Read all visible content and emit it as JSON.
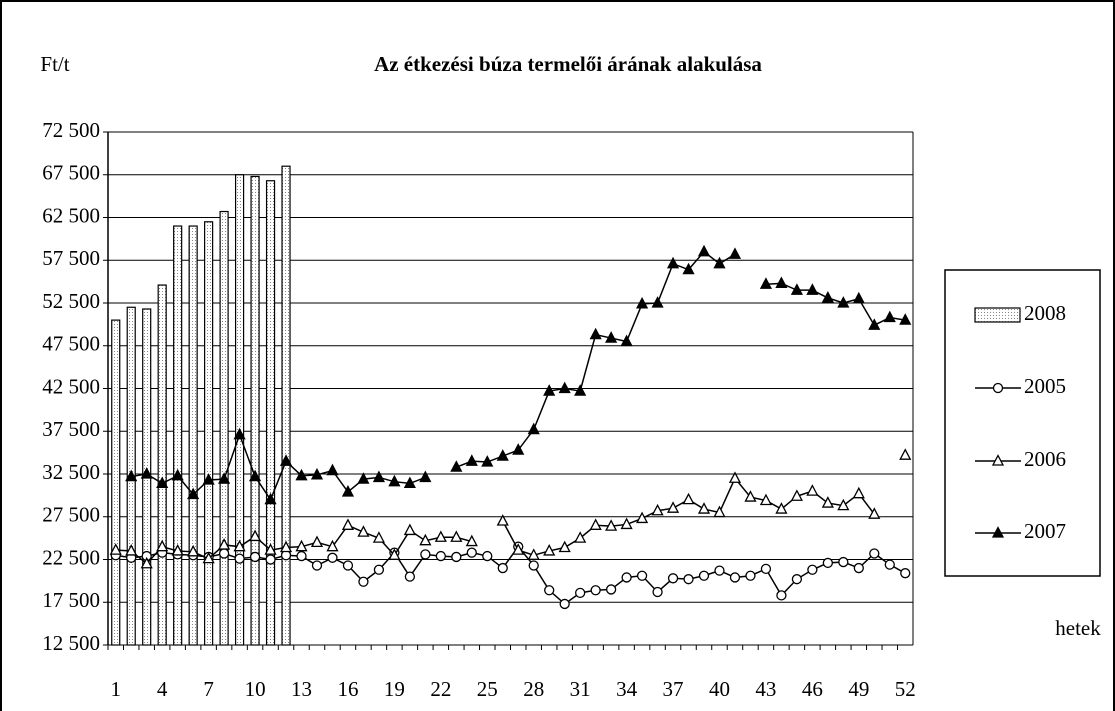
{
  "chart_data": {
    "type": "combo",
    "title": "Az étkezési búza termelői árának alakulása",
    "y_label": "Ft/t",
    "x_label": "hetek",
    "categories": [
      "1",
      null,
      null,
      "4",
      null,
      null,
      "7",
      null,
      null,
      "10",
      null,
      null,
      "13",
      null,
      null,
      "16",
      null,
      null,
      "19",
      null,
      null,
      "22",
      null,
      null,
      "25",
      null,
      null,
      "28",
      null,
      null,
      "31",
      null,
      null,
      "34",
      null,
      null,
      "37",
      null,
      null,
      "40",
      null,
      null,
      "43",
      null,
      null,
      "46",
      null,
      null,
      "49",
      null,
      null,
      "52"
    ],
    "ylim": [
      12500,
      72500
    ],
    "yticks": [
      {
        "value": 12500,
        "label": "12 500"
      },
      {
        "value": 17500,
        "label": "17 500"
      },
      {
        "value": 22500,
        "label": "22 500"
      },
      {
        "value": 27500,
        "label": "27 500"
      },
      {
        "value": 32500,
        "label": "32 500"
      },
      {
        "value": 37500,
        "label": "37 500"
      },
      {
        "value": 42500,
        "label": "42 500"
      },
      {
        "value": 47500,
        "label": "47 500"
      },
      {
        "value": 52500,
        "label": "52 500"
      },
      {
        "value": 57500,
        "label": "57 500"
      },
      {
        "value": 62500,
        "label": "62 500"
      },
      {
        "value": 67500,
        "label": "67 500"
      },
      {
        "value": 72500,
        "label": "72 500"
      }
    ],
    "grid": true,
    "legend": "right",
    "series": [
      {
        "name": "2008",
        "type": "bar",
        "color": "#e6e6e6",
        "values": [
          50500,
          52000,
          51800,
          54600,
          61500,
          61500,
          62000,
          63200,
          67500,
          67300,
          66800,
          68500,
          null,
          null,
          null,
          null,
          null,
          null,
          null,
          null,
          null,
          null,
          null,
          null,
          null,
          null,
          null,
          null,
          null,
          null,
          null,
          null,
          null,
          null,
          null,
          null,
          null,
          null,
          null,
          null,
          null,
          null,
          null,
          null,
          null,
          null,
          null,
          null,
          null,
          null,
          null,
          null
        ]
      },
      {
        "name": "2005",
        "type": "line",
        "marker": "circle",
        "color": "#000000",
        "values": [
          23000,
          22700,
          22900,
          23300,
          23100,
          23000,
          22800,
          23200,
          22600,
          22800,
          22500,
          23000,
          22900,
          21800,
          22700,
          21800,
          19900,
          21300,
          23300,
          20500,
          23100,
          22900,
          22800,
          23300,
          22900,
          21500,
          24000,
          21800,
          18900,
          17300,
          18600,
          18900,
          19000,
          20400,
          20600,
          18700,
          20300,
          20200,
          20600,
          21200,
          20400,
          20600,
          21400,
          18300,
          20200,
          21300,
          22100,
          22200,
          21500,
          23200,
          21900,
          20900
        ]
      },
      {
        "name": "2006",
        "type": "line",
        "marker": "triangle-open",
        "color": "#000000",
        "values": [
          23600,
          23500,
          22000,
          24000,
          23500,
          23400,
          22600,
          24200,
          24000,
          25200,
          23600,
          23900,
          24000,
          24500,
          24000,
          26500,
          25700,
          25000,
          23000,
          25900,
          24700,
          25100,
          25100,
          24600,
          null,
          27000,
          23600,
          23000,
          23500,
          23900,
          25000,
          26500,
          26400,
          26600,
          27300,
          28200,
          28500,
          29500,
          28400,
          28000,
          32000,
          29800,
          29400,
          28400,
          29900,
          30500,
          29100,
          28800,
          30200,
          27800,
          null,
          34700
        ]
      },
      {
        "name": "2007",
        "type": "line",
        "marker": "triangle-filled",
        "color": "#000000",
        "values": [
          null,
          32200,
          32500,
          31400,
          32300,
          30100,
          31800,
          31900,
          37100,
          32200,
          29500,
          34000,
          32300,
          32400,
          32900,
          30400,
          31900,
          32100,
          31600,
          31400,
          32100,
          null,
          33300,
          34000,
          33900,
          34600,
          35300,
          37700,
          42200,
          42500,
          42200,
          48800,
          48400,
          48000,
          52400,
          52500,
          57100,
          56400,
          58500,
          57100,
          58200,
          null,
          54700,
          54800,
          54000,
          54000,
          53100,
          52500,
          53000,
          49900,
          50800,
          50500
        ]
      }
    ]
  }
}
